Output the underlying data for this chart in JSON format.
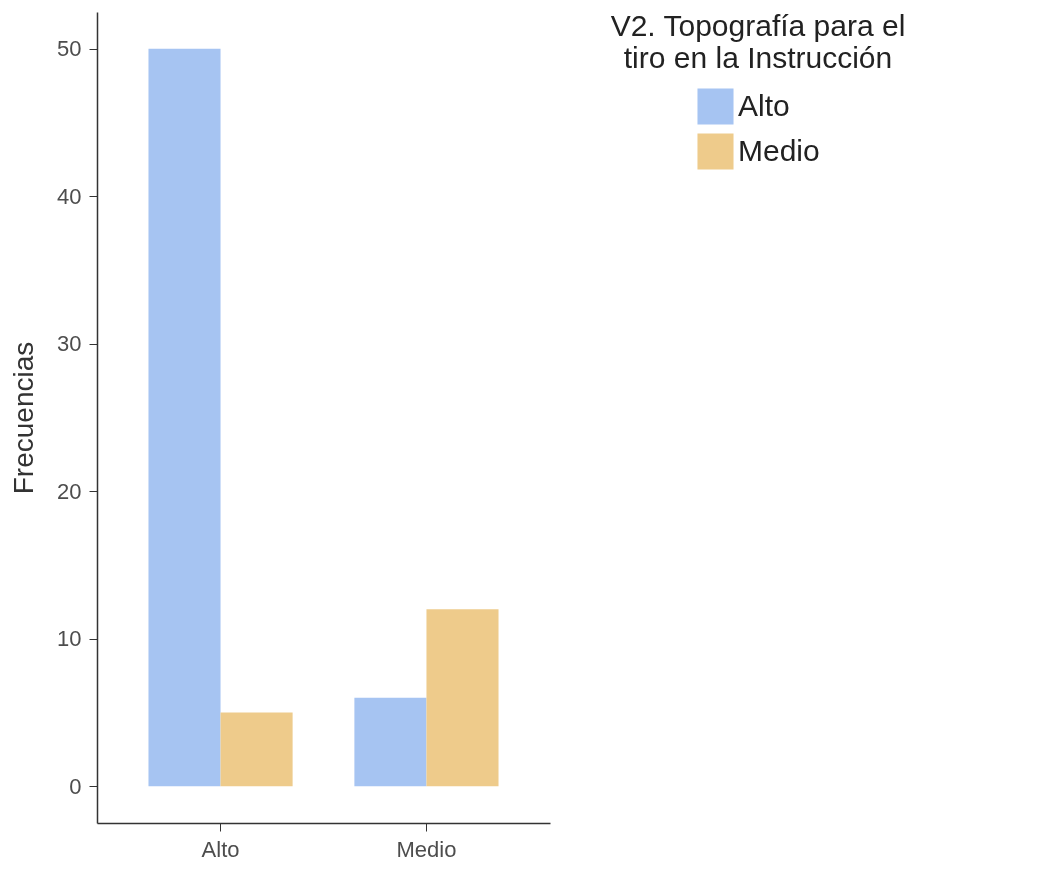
{
  "chart_data": {
    "type": "bar",
    "ylabel": "Frecuencias",
    "legend_title": "V2. Topografía para el tiro en la Instrucción",
    "categories": [
      "Alto",
      "Medio"
    ],
    "series": [
      {
        "name": "Alto",
        "color": "#a6c4f2",
        "values": [
          50,
          6
        ]
      },
      {
        "name": "Medio",
        "color": "#eecb8b",
        "values": [
          5,
          12
        ]
      }
    ],
    "ylim": [
      -2.5,
      52.5
    ],
    "yticks": [
      0,
      10,
      20,
      30,
      40,
      50
    ],
    "grid": false,
    "legend": "right"
  }
}
